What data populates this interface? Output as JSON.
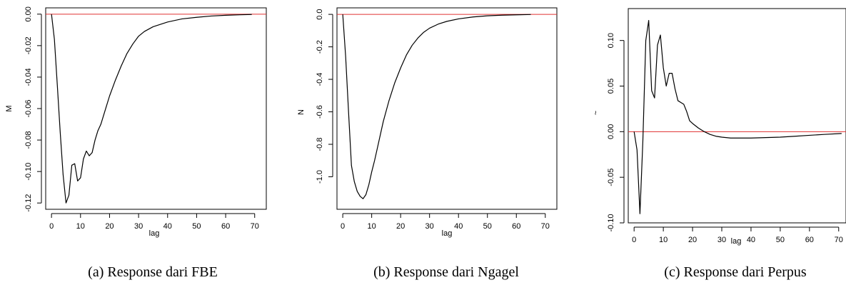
{
  "chart_data": [
    {
      "type": "line",
      "xlabel": "lag",
      "ylabel": "M",
      "caption": "(a) Response dari FBE",
      "xlim": [
        -2,
        74
      ],
      "ylim": [
        -0.124,
        0.004
      ],
      "xticks": [
        0,
        10,
        20,
        30,
        40,
        50,
        60,
        70
      ],
      "xtick_labels": [
        "0",
        "10",
        "20",
        "30",
        "40",
        "50",
        "60",
        "70"
      ],
      "yticks": [
        0,
        -0.02,
        -0.04,
        -0.06,
        -0.08,
        -0.1,
        -0.12
      ],
      "ytick_labels": [
        "0.00",
        "-0.02",
        "-0.04",
        "-0.06",
        "-0.08",
        "-0.10",
        "-0.12"
      ],
      "reference_line": {
        "y": 0,
        "color": "#e03030"
      },
      "series": [
        {
          "color": "#000000",
          "x": [
            0,
            1,
            2,
            3,
            4,
            5,
            6,
            7,
            8,
            9,
            10,
            11,
            12,
            13,
            14,
            15,
            16,
            17,
            18,
            19,
            20,
            22,
            24,
            26,
            28,
            30,
            32,
            35,
            40,
            45,
            50,
            55,
            60,
            65,
            69
          ],
          "y": [
            0,
            -0.016,
            -0.045,
            -0.075,
            -0.102,
            -0.12,
            -0.115,
            -0.096,
            -0.095,
            -0.106,
            -0.104,
            -0.092,
            -0.087,
            -0.09,
            -0.088,
            -0.08,
            -0.074,
            -0.07,
            -0.064,
            -0.058,
            -0.052,
            -0.042,
            -0.033,
            -0.025,
            -0.019,
            -0.014,
            -0.011,
            -0.008,
            -0.005,
            -0.003,
            -0.002,
            -0.0012,
            -0.0007,
            -0.0004,
            -0.0002
          ]
        }
      ]
    },
    {
      "type": "line",
      "xlabel": "lag",
      "ylabel": "N",
      "caption": "(b) Response dari Ngagel",
      "xlim": [
        -2,
        74
      ],
      "ylim": [
        -1.2,
        0.04
      ],
      "xticks": [
        0,
        10,
        20,
        30,
        40,
        50,
        60,
        70
      ],
      "xtick_labels": [
        "0",
        "10",
        "20",
        "30",
        "40",
        "50",
        "60",
        "70"
      ],
      "yticks": [
        0,
        -0.2,
        -0.4,
        -0.6,
        -0.8,
        -1.0
      ],
      "ytick_labels": [
        "0.0",
        "-0.2",
        "-0.4",
        "-0.6",
        "-0.8",
        "-1.0"
      ],
      "reference_line": {
        "y": 0,
        "color": "#e03030"
      },
      "series": [
        {
          "color": "#000000",
          "x": [
            0,
            1,
            2,
            3,
            4,
            5,
            6,
            7,
            8,
            9,
            10,
            11,
            12,
            14,
            16,
            18,
            20,
            22,
            24,
            26,
            28,
            30,
            33,
            36,
            40,
            45,
            50,
            55,
            60,
            65
          ],
          "y": [
            0,
            -0.26,
            -0.6,
            -0.93,
            -1.03,
            -1.09,
            -1.12,
            -1.135,
            -1.11,
            -1.05,
            -0.97,
            -0.9,
            -0.82,
            -0.66,
            -0.53,
            -0.42,
            -0.33,
            -0.25,
            -0.19,
            -0.145,
            -0.11,
            -0.085,
            -0.06,
            -0.043,
            -0.028,
            -0.016,
            -0.009,
            -0.005,
            -0.003,
            -0.001
          ]
        }
      ]
    },
    {
      "type": "line",
      "xlabel": "lag",
      "ylabel": "~",
      "caption": "(c) Response dari Perpus",
      "xlim": [
        -2,
        72.5
      ],
      "ylim": [
        -0.1,
        0.135
      ],
      "xticks": [
        0,
        10,
        20,
        30,
        40,
        50,
        60,
        70
      ],
      "xtick_labels": [
        "0",
        "10",
        "20",
        "30",
        "40",
        "50",
        "60",
        "70"
      ],
      "yticks": [
        0.1,
        0.05,
        0,
        -0.05,
        -0.1
      ],
      "ytick_labels": [
        "0.10",
        "0.05",
        "0.00",
        "-0.05",
        "-0.10"
      ],
      "reference_line": {
        "y": 0,
        "color": "#e03030"
      },
      "series": [
        {
          "color": "#000000",
          "x": [
            0,
            1,
            2,
            3,
            4,
            5,
            6,
            7,
            8,
            9,
            10,
            11,
            12,
            13,
            14,
            15,
            16,
            17,
            18,
            19,
            20,
            22,
            24,
            26,
            28,
            30,
            33,
            36,
            40,
            45,
            50,
            55,
            60,
            65,
            71
          ],
          "y": [
            0,
            -0.02,
            -0.09,
            -0.01,
            0.1,
            0.122,
            0.045,
            0.037,
            0.095,
            0.106,
            0.07,
            0.05,
            0.064,
            0.064,
            0.047,
            0.034,
            0.032,
            0.03,
            0.022,
            0.012,
            0.009,
            0.004,
            0.0,
            -0.003,
            -0.005,
            -0.006,
            -0.007,
            -0.007,
            -0.007,
            -0.0065,
            -0.006,
            -0.005,
            -0.004,
            -0.003,
            -0.002
          ]
        }
      ]
    }
  ]
}
